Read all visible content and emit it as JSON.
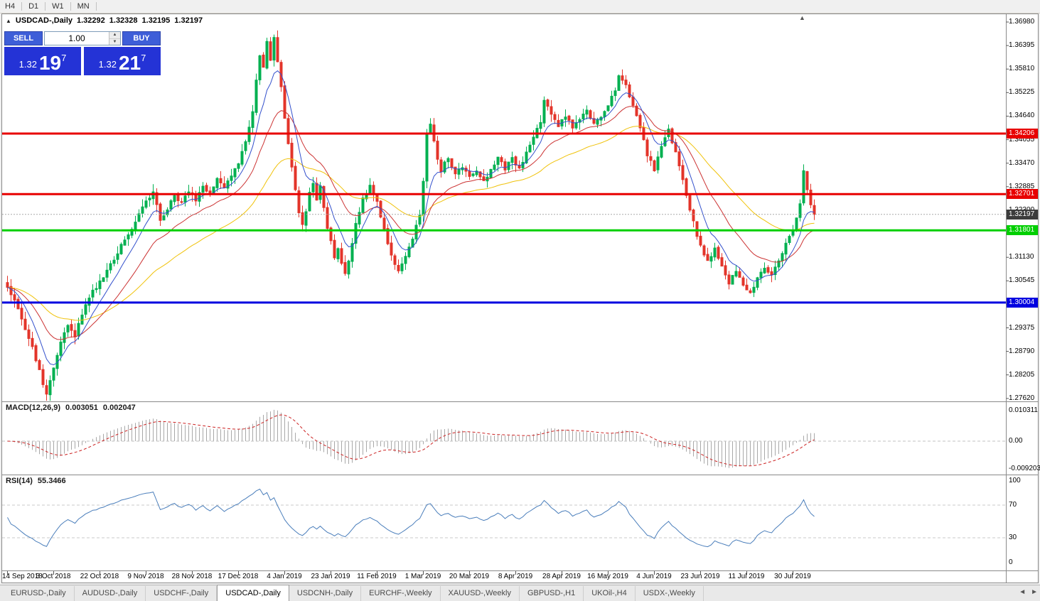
{
  "icons": {
    "symbol_marker": "▲",
    "spin_up": "▲",
    "spin_down": "▼",
    "scroll_left": "◄",
    "scroll_right": "►",
    "shift_marker": "▲"
  },
  "toolbar": {
    "periods": [
      "H4",
      "D1",
      "W1",
      "MN"
    ]
  },
  "chart_header": {
    "symbol": "USDCAD-,Daily",
    "open": "1.32292",
    "high": "1.32328",
    "low": "1.32195",
    "close": "1.32197"
  },
  "trade_panel": {
    "sell_label": "SELL",
    "buy_label": "BUY",
    "volume": "1.00",
    "sell_price": {
      "base": "1.32",
      "big": "19",
      "sup": "7"
    },
    "buy_price": {
      "base": "1.32",
      "big": "21",
      "sup": "7"
    }
  },
  "price_axis": {
    "labels": [
      "1.36980",
      "1.36395",
      "1.35810",
      "1.35225",
      "1.34640",
      "1.34055",
      "1.33470",
      "1.32885",
      "1.32300",
      "1.31715",
      "1.31130",
      "1.30545",
      "1.29960",
      "1.29375",
      "1.28790",
      "1.28205",
      "1.27620"
    ]
  },
  "levels": [
    {
      "price": "1.34206",
      "value": 1.34206,
      "color": "#e80000",
      "width": 3
    },
    {
      "price": "1.32701",
      "value": 1.32701,
      "color": "#e80000",
      "width": 3
    },
    {
      "price": "1.31801",
      "value": 1.31801,
      "color": "#00cf00",
      "width": 3
    },
    {
      "price": "1.30004",
      "value": 1.30004,
      "color": "#0000e0",
      "width": 3
    }
  ],
  "current_price": {
    "label": "1.32197",
    "value": 1.32197
  },
  "macd": {
    "title": "MACD(12,26,9)",
    "main": "0.003051",
    "signal": "0.002047",
    "axis": [
      "0.010311",
      "0.00",
      "-0.009203"
    ]
  },
  "rsi": {
    "title": "RSI(14)",
    "value": "55.3466",
    "axis": [
      "100",
      "70",
      "30",
      "0"
    ]
  },
  "date_axis": {
    "labels": [
      "14 Sep 2018",
      "3 Oct 2018",
      "22 Oct 2018",
      "9 Nov 2018",
      "28 Nov 2018",
      "17 Dec 2018",
      "4 Jan 2019",
      "23 Jan 2019",
      "11 Feb 2019",
      "1 Mar 2019",
      "20 Mar 2019",
      "8 Apr 2019",
      "28 Apr 2019",
      "16 May 2019",
      "4 Jun 2019",
      "23 Jun 2019",
      "11 Jul 2019",
      "30 Jul 2019"
    ]
  },
  "tabs": {
    "items": [
      {
        "label": "EURUSD-,Daily",
        "active": false
      },
      {
        "label": "AUDUSD-,Daily",
        "active": false
      },
      {
        "label": "USDCHF-,Daily",
        "active": false
      },
      {
        "label": "USDCAD-,Daily",
        "active": true
      },
      {
        "label": "USDCNH-,Daily",
        "active": false
      },
      {
        "label": "EURCHF-,Weekly",
        "active": false
      },
      {
        "label": "XAUUSD-,Weekly",
        "active": false
      },
      {
        "label": "GBPUSD-,H1",
        "active": false
      },
      {
        "label": "UKOil-,H4",
        "active": false
      },
      {
        "label": "USDX-,Weekly",
        "active": false
      }
    ]
  },
  "colors": {
    "up": "#00b050",
    "down": "#e3342a",
    "ma_fast": "#3350cc",
    "ma_mid": "#cc3333",
    "ma_slow": "#f0c20a",
    "macd_hist": "#a8a8a8",
    "macd_signal": "#cc2222",
    "rsi": "#4a7ebb",
    "current_tag": "#3c3c3c"
  },
  "chart_data": {
    "type": "candlestick",
    "symbol": "USDCAD",
    "timeframe": "Daily",
    "title": "USDCAD-,Daily",
    "ohlc_current": {
      "open": 1.32292,
      "high": 1.32328,
      "low": 1.32195,
      "close": 1.32197
    },
    "n_candles": 228,
    "last_close": 1.32197,
    "price_range": [
      1.2755,
      1.3714
    ],
    "spike_low": {
      "index": 11,
      "price": 1.2768
    },
    "anchors": [
      [
        0,
        1.304
      ],
      [
        2,
        1.301
      ],
      [
        4,
        1.296
      ],
      [
        6,
        1.2915
      ],
      [
        8,
        1.286
      ],
      [
        10,
        1.28
      ],
      [
        11,
        1.2778
      ],
      [
        13,
        1.284
      ],
      [
        15,
        1.2905
      ],
      [
        17,
        1.2945
      ],
      [
        19,
        1.2915
      ],
      [
        21,
        1.2975
      ],
      [
        24,
        1.303
      ],
      [
        27,
        1.306
      ],
      [
        30,
        1.311
      ],
      [
        33,
        1.3155
      ],
      [
        36,
        1.32
      ],
      [
        39,
        1.325
      ],
      [
        41,
        1.328
      ],
      [
        43,
        1.32
      ],
      [
        45,
        1.3235
      ],
      [
        47,
        1.327
      ],
      [
        49,
        1.3245
      ],
      [
        51,
        1.328
      ],
      [
        53,
        1.325
      ],
      [
        55,
        1.3295
      ],
      [
        57,
        1.3265
      ],
      [
        59,
        1.331
      ],
      [
        61,
        1.3285
      ],
      [
        63,
        1.332
      ],
      [
        65,
        1.335
      ],
      [
        67,
        1.34
      ],
      [
        69,
        1.348
      ],
      [
        70,
        1.355
      ],
      [
        71,
        1.361
      ],
      [
        72,
        1.358
      ],
      [
        73,
        1.3645
      ],
      [
        74,
        1.36
      ],
      [
        75,
        1.3655
      ],
      [
        76,
        1.36
      ],
      [
        77,
        1.354
      ],
      [
        78,
        1.346
      ],
      [
        79,
        1.34
      ],
      [
        80,
        1.334
      ],
      [
        81,
        1.328
      ],
      [
        82,
        1.322
      ],
      [
        83,
        1.319
      ],
      [
        84,
        1.323
      ],
      [
        85,
        1.327
      ],
      [
        86,
        1.33
      ],
      [
        87,
        1.326
      ],
      [
        88,
        1.329
      ],
      [
        89,
        1.324
      ],
      [
        90,
        1.319
      ],
      [
        91,
        1.315
      ],
      [
        92,
        1.311
      ],
      [
        93,
        1.314
      ],
      [
        94,
        1.31
      ],
      [
        95,
        1.307
      ],
      [
        96,
        1.31
      ],
      [
        97,
        1.315
      ],
      [
        98,
        1.32
      ],
      [
        100,
        1.326
      ],
      [
        102,
        1.329
      ],
      [
        104,
        1.325
      ],
      [
        106,
        1.318
      ],
      [
        108,
        1.312
      ],
      [
        110,
        1.308
      ],
      [
        112,
        1.312
      ],
      [
        114,
        1.316
      ],
      [
        116,
        1.322
      ],
      [
        117,
        1.33
      ],
      [
        118,
        1.342
      ],
      [
        119,
        1.344
      ],
      [
        120,
        1.34
      ],
      [
        121,
        1.336
      ],
      [
        122,
        1.333
      ],
      [
        124,
        1.336
      ],
      [
        126,
        1.332
      ],
      [
        128,
        1.334
      ],
      [
        130,
        1.331
      ],
      [
        132,
        1.333
      ],
      [
        134,
        1.33
      ],
      [
        136,
        1.333
      ],
      [
        138,
        1.336
      ],
      [
        140,
        1.333
      ],
      [
        142,
        1.336
      ],
      [
        144,
        1.333
      ],
      [
        146,
        1.337
      ],
      [
        148,
        1.341
      ],
      [
        150,
        1.345
      ],
      [
        151,
        1.35
      ],
      [
        153,
        1.347
      ],
      [
        155,
        1.344
      ],
      [
        157,
        1.3465
      ],
      [
        159,
        1.3435
      ],
      [
        161,
        1.3455
      ],
      [
        163,
        1.3475
      ],
      [
        165,
        1.3445
      ],
      [
        167,
        1.3465
      ],
      [
        169,
        1.349
      ],
      [
        171,
        1.353
      ],
      [
        172,
        1.3565
      ],
      [
        174,
        1.354
      ],
      [
        176,
        1.349
      ],
      [
        178,
        1.343
      ],
      [
        180,
        1.337
      ],
      [
        182,
        1.333
      ],
      [
        184,
        1.339
      ],
      [
        186,
        1.343
      ],
      [
        187,
        1.34
      ],
      [
        189,
        1.334
      ],
      [
        191,
        1.327
      ],
      [
        193,
        1.32
      ],
      [
        195,
        1.314
      ],
      [
        197,
        1.31
      ],
      [
        199,
        1.314
      ],
      [
        201,
        1.309
      ],
      [
        203,
        1.305
      ],
      [
        205,
        1.308
      ],
      [
        207,
        1.304
      ],
      [
        209,
        1.302
      ],
      [
        211,
        1.306
      ],
      [
        213,
        1.309
      ],
      [
        215,
        1.3065
      ],
      [
        217,
        1.3105
      ],
      [
        219,
        1.315
      ],
      [
        221,
        1.3185
      ],
      [
        222,
        1.321
      ],
      [
        223,
        1.325
      ],
      [
        224,
        1.333
      ],
      [
        225,
        1.328
      ],
      [
        226,
        1.324
      ],
      [
        227,
        1.32197
      ]
    ],
    "levels": [
      1.34206,
      1.32701,
      1.31801,
      1.30004
    ],
    "indicators": {
      "macd": {
        "params": [
          12,
          26,
          9
        ],
        "main": 0.003051,
        "signal": 0.002047
      },
      "rsi": {
        "period": 14,
        "value": 55.3466,
        "levels": [
          70,
          30
        ]
      },
      "moving_averages": [
        {
          "period": 8,
          "color": "#3350cc"
        },
        {
          "period": 20,
          "color": "#cc3333"
        },
        {
          "period": 45,
          "color": "#f0c20a"
        }
      ]
    },
    "dates_shown": "14 Sep 2018 - 30 Jul 2019"
  }
}
